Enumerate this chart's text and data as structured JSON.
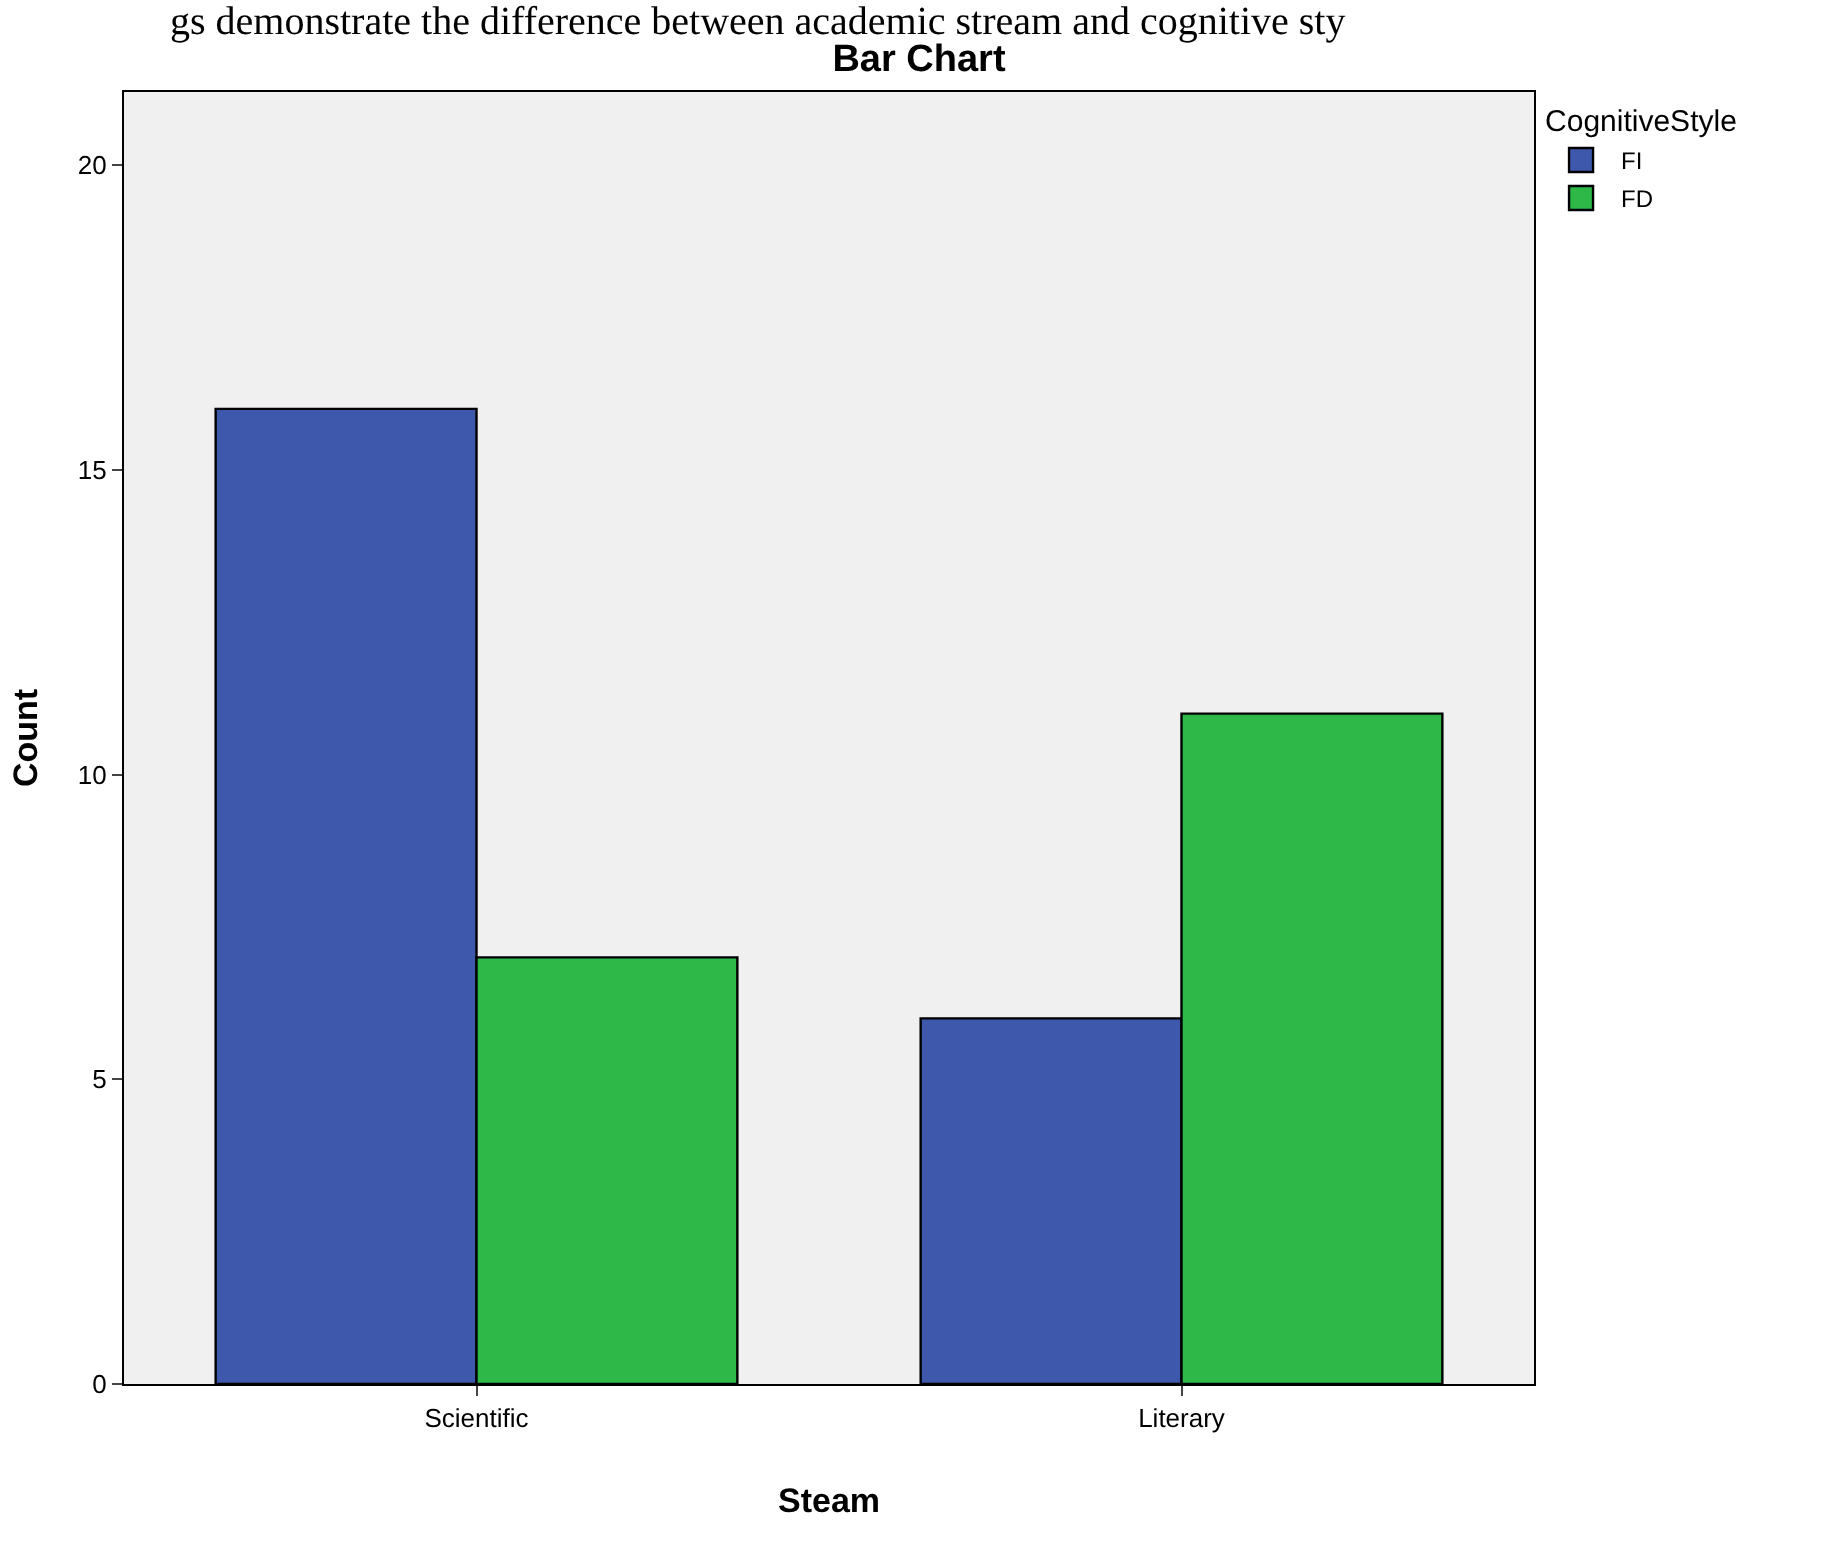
{
  "chart_data": {
    "type": "bar",
    "title": "Bar Chart",
    "xlabel": "Steam",
    "ylabel": "Count",
    "legend_title": "CognitiveStyle",
    "annotations": [
      "gs demonstrate the difference between academic stream and cognitive sty"
    ],
    "categories": [
      "Scientific",
      "Literary"
    ],
    "series": [
      {
        "name": "FI",
        "color": "#3e58ac",
        "values": [
          16,
          6
        ]
      },
      {
        "name": "FD",
        "color": "#2eb848",
        "values": [
          7,
          11
        ]
      }
    ],
    "ylim": [
      0,
      21.2
    ],
    "yticks": [
      0,
      5,
      10,
      15,
      20
    ],
    "grid": false,
    "legend": "top right"
  }
}
